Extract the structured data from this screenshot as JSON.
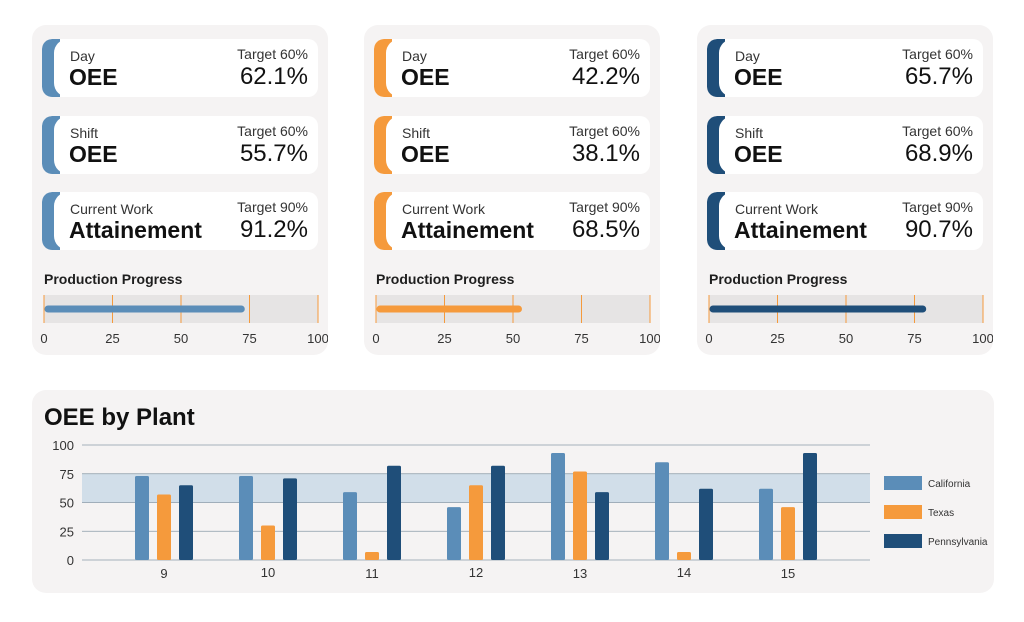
{
  "colors": {
    "california": "#5b8db8",
    "texas": "#f59a3c",
    "pennsylvania": "#1f4e79",
    "tick": "#f59a3c"
  },
  "panels": [
    {
      "accent": "#5b8db8",
      "kpis": [
        {
          "label": "Day",
          "name": "OEE",
          "target": "Target 60%",
          "value": "62.1%"
        },
        {
          "label": "Shift",
          "name": "OEE",
          "target": "Target 60%",
          "value": "55.7%"
        },
        {
          "label": "Current Work",
          "name": "Attainement",
          "target": "Target 90%",
          "value": "91.2%"
        }
      ],
      "progress_title": "Production Progress",
      "progress": 0.72,
      "ticks": [
        "0",
        "25",
        "50",
        "75",
        "100"
      ]
    },
    {
      "accent": "#f59a3c",
      "kpis": [
        {
          "label": "Day",
          "name": "OEE",
          "target": "Target 60%",
          "value": "42.2%"
        },
        {
          "label": "Shift",
          "name": "OEE",
          "target": "Target 60%",
          "value": "38.1%"
        },
        {
          "label": "Current Work",
          "name": "Attainement",
          "target": "Target 90%",
          "value": "68.5%"
        }
      ],
      "progress_title": "Production Progress",
      "progress": 0.52,
      "ticks": [
        "0",
        "25",
        "50",
        "75",
        "100"
      ]
    },
    {
      "accent": "#1f4e79",
      "kpis": [
        {
          "label": "Day",
          "name": "OEE",
          "target": "Target 60%",
          "value": "65.7%"
        },
        {
          "label": "Shift",
          "name": "OEE",
          "target": "Target 60%",
          "value": "68.9%"
        },
        {
          "label": "Current Work",
          "name": "Attainement",
          "target": "Target 90%",
          "value": "90.7%"
        }
      ],
      "progress_title": "Production Progress",
      "progress": 0.78,
      "ticks": [
        "0",
        "25",
        "50",
        "75",
        "100"
      ]
    }
  ],
  "chart_data": {
    "type": "bar",
    "title": "OEE by Plant",
    "categories": [
      "9",
      "10",
      "11",
      "12",
      "13",
      "14",
      "15"
    ],
    "series": [
      {
        "name": "California",
        "values": [
          73,
          73,
          59,
          46,
          93,
          85,
          62
        ]
      },
      {
        "name": "Texas",
        "values": [
          57,
          30,
          7,
          65,
          77,
          7,
          46
        ]
      },
      {
        "name": "Pennsylvania",
        "values": [
          65,
          71,
          82,
          82,
          59,
          62,
          93
        ]
      }
    ],
    "yticks": [
      "0",
      "25",
      "50",
      "75",
      "100"
    ],
    "ylim": [
      0,
      100
    ],
    "target_band": [
      50,
      75
    ],
    "legend": "right"
  }
}
